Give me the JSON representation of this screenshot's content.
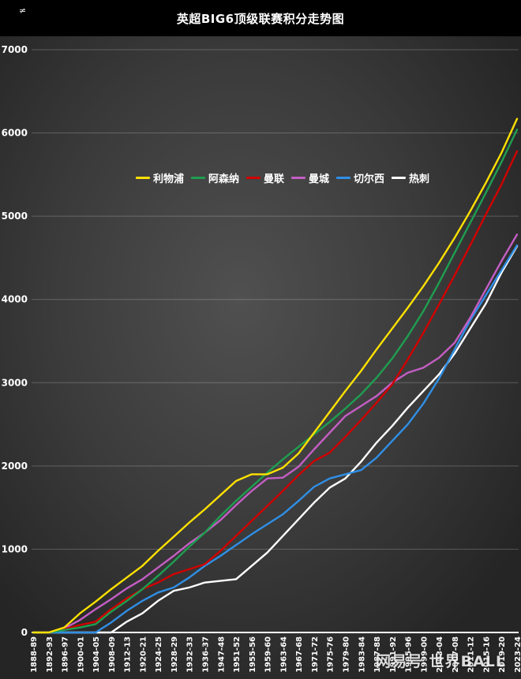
{
  "header": {
    "title": "英超BIG6顶级联赛积分走势图",
    "corner_glyph": "≠"
  },
  "watermark": {
    "text": "网易号 世界BALL"
  },
  "chart_data": {
    "type": "line",
    "title": "英超BIG6顶级联赛积分走势图",
    "xlabel": "",
    "ylabel": "",
    "ylim": [
      0,
      7000
    ],
    "yticks": [
      0,
      1000,
      2000,
      3000,
      4000,
      5000,
      6000,
      7000
    ],
    "grid": true,
    "legend_position": "top-center-inside",
    "background": {
      "center": "#505050",
      "edge": "#252525",
      "titlebar": "#000000"
    },
    "categories": [
      "1888-89",
      "1892-93",
      "1896-97",
      "1900-01",
      "1904-05",
      "1908-09",
      "1912-13",
      "1920-21",
      "1924-25",
      "1928-29",
      "1932-33",
      "1936-37",
      "1947-48",
      "1951-52",
      "1955-56",
      "1959-60",
      "1963-64",
      "1967-68",
      "1971-72",
      "1975-76",
      "1979-80",
      "1983-84",
      "1987-88",
      "1991-92",
      "1995-96",
      "1999-00",
      "2003-04",
      "2007-08",
      "2011-12",
      "2015-16",
      "2019-20",
      "2023-24"
    ],
    "series": [
      {
        "name": "利物浦",
        "color": "#ffe100",
        "values": [
          0,
          0,
          60,
          230,
          370,
          520,
          660,
          800,
          980,
          1150,
          1320,
          1480,
          1650,
          1820,
          1900,
          1900,
          1980,
          2150,
          2400,
          2650,
          2900,
          3140,
          3400,
          3650,
          3900,
          4160,
          4440,
          4740,
          5060,
          5400,
          5760,
          6170
        ]
      },
      {
        "name": "阿森纳",
        "color": "#1e9e50",
        "values": [
          0,
          0,
          30,
          60,
          100,
          250,
          380,
          520,
          680,
          850,
          1030,
          1200,
          1400,
          1580,
          1750,
          1920,
          2080,
          2230,
          2380,
          2530,
          2690,
          2860,
          3060,
          3290,
          3560,
          3860,
          4200,
          4560,
          4920,
          5280,
          5650,
          6040
        ]
      },
      {
        "name": "曼联",
        "color": "#d10000",
        "values": [
          0,
          0,
          40,
          90,
          130,
          280,
          410,
          520,
          600,
          700,
          760,
          820,
          980,
          1160,
          1340,
          1520,
          1700,
          1890,
          2060,
          2160,
          2350,
          2550,
          2760,
          2980,
          3280,
          3600,
          3940,
          4290,
          4650,
          5020,
          5380,
          5780
        ]
      },
      {
        "name": "曼城",
        "color": "#c45ec4",
        "values": [
          0,
          0,
          50,
          150,
          280,
          400,
          530,
          640,
          780,
          920,
          1070,
          1200,
          1350,
          1530,
          1700,
          1850,
          1860,
          1990,
          2200,
          2400,
          2600,
          2720,
          2840,
          3000,
          3120,
          3180,
          3300,
          3480,
          3780,
          4120,
          4460,
          4780
        ]
      },
      {
        "name": "切尔西",
        "color": "#2f8fe6",
        "values": [
          0,
          0,
          0,
          0,
          0,
          120,
          260,
          380,
          480,
          540,
          660,
          800,
          920,
          1050,
          1180,
          1300,
          1420,
          1580,
          1750,
          1850,
          1900,
          1950,
          2100,
          2300,
          2500,
          2750,
          3050,
          3400,
          3750,
          4050,
          4350,
          4650
        ]
      },
      {
        "name": "热刺",
        "color": "#ffffff",
        "values": [
          0,
          0,
          0,
          0,
          0,
          0,
          130,
          230,
          380,
          500,
          540,
          600,
          620,
          640,
          800,
          960,
          1160,
          1360,
          1560,
          1740,
          1850,
          2050,
          2280,
          2480,
          2700,
          2900,
          3100,
          3350,
          3650,
          3950,
          4320,
          4640
        ]
      }
    ]
  }
}
